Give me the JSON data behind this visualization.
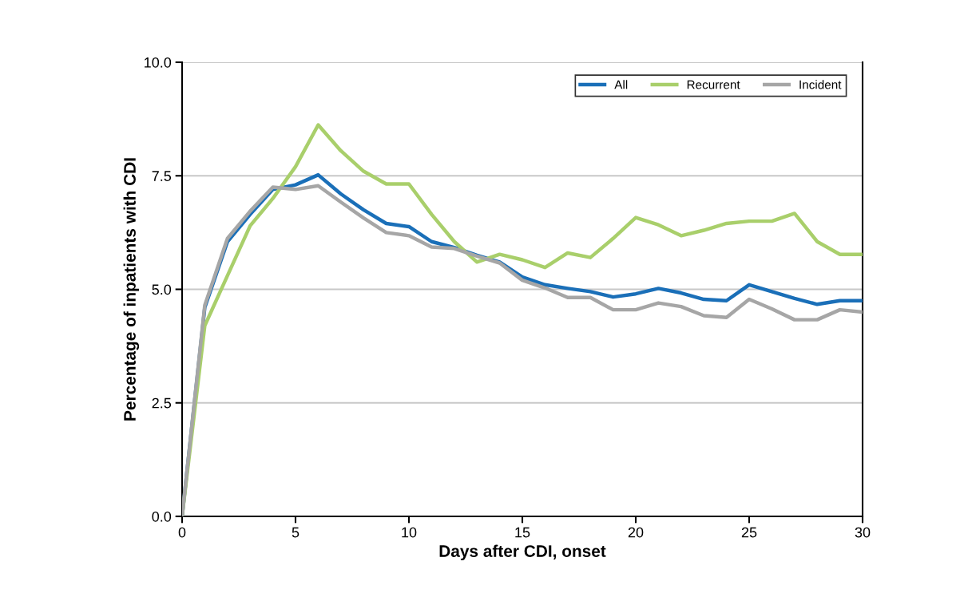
{
  "chart_data": {
    "type": "line",
    "xlabel": "Days after CDI, onset",
    "ylabel": "Percentage of inpatients with CDI",
    "x": [
      0,
      1,
      2,
      3,
      4,
      5,
      6,
      7,
      8,
      9,
      10,
      11,
      12,
      13,
      14,
      15,
      16,
      17,
      18,
      19,
      20,
      21,
      22,
      23,
      24,
      25,
      26,
      27,
      28,
      29,
      30
    ],
    "series": [
      {
        "name": "All",
        "color": "#1a6fb8",
        "values": [
          0,
          4.6,
          6.05,
          6.65,
          7.2,
          7.3,
          7.52,
          7.1,
          6.75,
          6.45,
          6.38,
          6.05,
          5.92,
          5.75,
          5.6,
          5.27,
          5.1,
          5.02,
          4.95,
          4.83,
          4.9,
          5.02,
          4.92,
          4.78,
          4.75,
          5.1,
          4.95,
          4.8,
          4.67,
          4.75,
          4.75
        ]
      },
      {
        "name": "Recurrent",
        "color": "#a9cf6b",
        "values": [
          0,
          4.2,
          5.3,
          6.4,
          7.0,
          7.7,
          8.62,
          8.05,
          7.6,
          7.32,
          7.32,
          6.65,
          6.05,
          5.6,
          5.77,
          5.65,
          5.48,
          5.8,
          5.7,
          6.12,
          6.58,
          6.42,
          6.18,
          6.3,
          6.45,
          6.5,
          6.5,
          6.67,
          6.05,
          5.77,
          5.77
        ]
      },
      {
        "name": "Incident",
        "color": "#a6a6a6",
        "values": [
          0,
          4.65,
          6.12,
          6.72,
          7.25,
          7.2,
          7.28,
          6.92,
          6.57,
          6.25,
          6.18,
          5.93,
          5.9,
          5.73,
          5.58,
          5.2,
          5.03,
          4.82,
          4.82,
          4.55,
          4.55,
          4.7,
          4.62,
          4.42,
          4.38,
          4.78,
          4.57,
          4.33,
          4.33,
          4.55,
          4.5
        ]
      }
    ],
    "xlim": [
      0,
      30
    ],
    "xticks": [
      0,
      5,
      10,
      15,
      20,
      25,
      30
    ],
    "ylim": [
      0,
      10
    ],
    "yticks": [
      {
        "value": 0,
        "label": "0.0"
      },
      {
        "value": 2.5,
        "label": "2.5"
      },
      {
        "value": 5,
        "label": "5.0"
      },
      {
        "value": 7.5,
        "label": "7.5"
      },
      {
        "value": 10,
        "label": "10.0"
      }
    ],
    "grid": "y",
    "legend": "top right",
    "marker": "none",
    "line_style": "solid"
  }
}
